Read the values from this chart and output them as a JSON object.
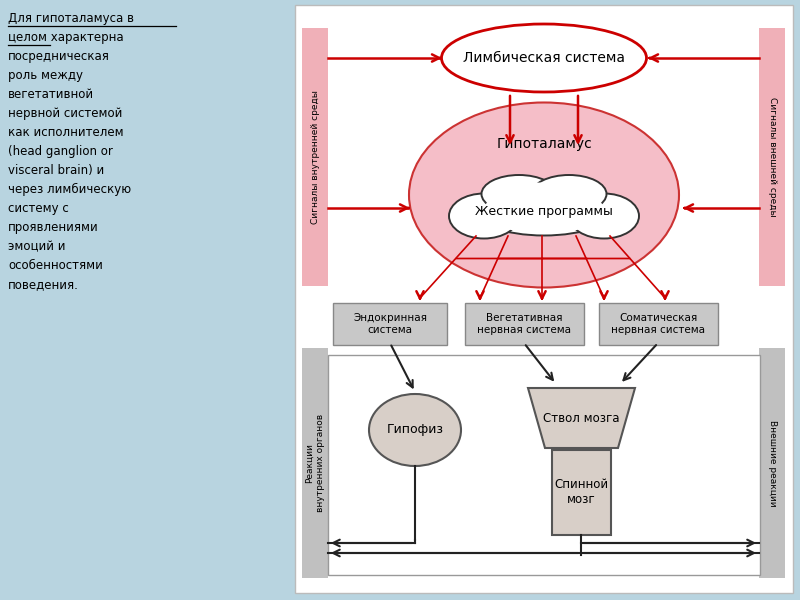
{
  "bg_color": "#b8d4e0",
  "diagram_bg": "#ffffff",
  "pink_color": "#f0b0b8",
  "gray_color": "#c8c8c8",
  "red_color": "#cc0000",
  "black_color": "#222222",
  "left_text_lines": [
    "Для гипоталамуса в",
    "целом характерна",
    "посредническая",
    "роль между",
    "вегетативной",
    "нервной системой",
    "как исполнителем",
    "(head ganglion or",
    "visceral brain) и",
    "через лимбическую",
    "систему с",
    "проявлениями",
    "эмоций и",
    "особенностями",
    "поведения."
  ],
  "limbic_label": "Лимбическая система",
  "hypothalamus_label": "Гипоталамус",
  "rigid_programs_label": "Жесткие программы",
  "endocrine_label": "Эндокринная\nсистема",
  "vegetative_label": "Вегетативная\nнервная система",
  "somatic_label": "Соматическая\nнервная система",
  "pituitary_label": "Гипофиз",
  "brainstem_label": "Ствол мозга",
  "spinal_label": "Спинной\nмозг",
  "internal_signals_label": "Сигналы внутренней среды",
  "external_signals_label": "Сигналы внешней среды",
  "internal_reactions_label": "Реакции\nвнутренних органов",
  "external_reactions_label": "Внешние реакции"
}
